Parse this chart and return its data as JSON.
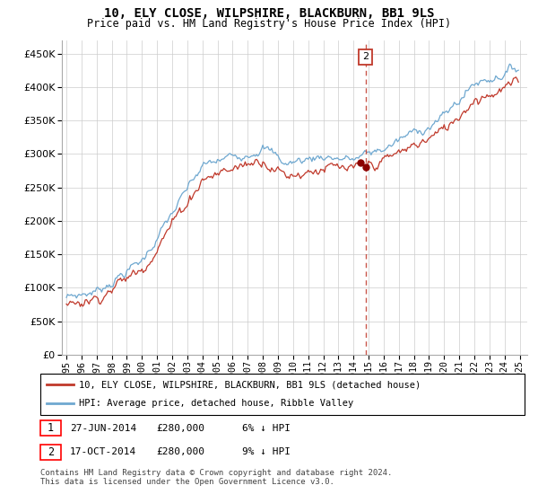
{
  "title": "10, ELY CLOSE, WILPSHIRE, BLACKBURN, BB1 9LS",
  "subtitle": "Price paid vs. HM Land Registry's House Price Index (HPI)",
  "ylim": [
    0,
    470000
  ],
  "yticks": [
    0,
    50000,
    100000,
    150000,
    200000,
    250000,
    300000,
    350000,
    400000,
    450000
  ],
  "legend_line1": "10, ELY CLOSE, WILPSHIRE, BLACKBURN, BB1 9LS (detached house)",
  "legend_line2": "HPI: Average price, detached house, Ribble Valley",
  "footnote": "Contains HM Land Registry data © Crown copyright and database right 2024.\nThis data is licensed under the Open Government Licence v3.0.",
  "table_rows": [
    {
      "num": "1",
      "date": "27-JUN-2014",
      "price": "£280,000",
      "hpi": "6% ↓ HPI"
    },
    {
      "num": "2",
      "date": "17-OCT-2014",
      "price": "£280,000",
      "hpi": "9% ↓ HPI"
    }
  ],
  "sale1_year": 2014.46,
  "sale2_year": 2014.79,
  "sale_price": 280000,
  "vline_x": 2014.79,
  "annotation_label": "2",
  "hpi_color": "#6fa8d0",
  "price_color": "#c0392b",
  "sale_dot_color": "#8b0000",
  "grid_color": "#cccccc",
  "background_color": "#ffffff",
  "xlim_left": 1994.7,
  "xlim_right": 2025.5
}
